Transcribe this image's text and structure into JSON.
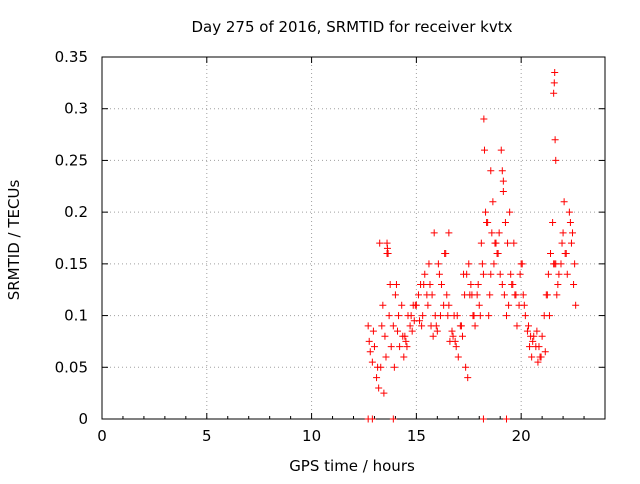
{
  "chart_data": {
    "type": "scatter",
    "title": "Day 275 of 2016, SRMTID for receiver kvtx",
    "xlabel": "GPS time / hours",
    "ylabel": "SRMTID / TECUs",
    "xlim": [
      0,
      24
    ],
    "ylim": [
      0,
      0.35
    ],
    "x_ticks": [
      0,
      5,
      10,
      15,
      20
    ],
    "y_ticks": [
      0,
      0.05,
      0.1,
      0.15,
      0.2,
      0.25,
      0.3,
      0.35
    ],
    "x_tick_labels": [
      "0",
      "5",
      "10",
      "15",
      "20"
    ],
    "y_tick_labels": [
      "0",
      "0.05",
      "0.1",
      "0.15",
      "0.2",
      "0.25",
      "0.3",
      "0.35"
    ],
    "grid": true,
    "marker": "+",
    "series": [
      {
        "name": "SRMTID",
        "color": "#ff0000",
        "x": [
          12.7,
          12.8,
          12.9,
          13.0,
          13.1,
          13.2,
          13.3,
          13.4,
          13.5,
          13.6,
          13.7,
          13.8,
          13.9,
          14.0,
          14.1,
          14.2,
          14.3,
          14.4,
          14.5,
          14.6,
          14.7,
          14.8,
          14.9,
          15.0,
          15.1,
          15.2,
          15.3,
          15.4,
          15.5,
          15.6,
          15.7,
          15.8,
          15.9,
          16.0,
          16.1,
          16.2,
          16.3,
          16.4,
          16.5,
          16.6,
          16.7,
          16.8,
          16.9,
          17.0,
          17.1,
          17.2,
          17.3,
          17.4,
          17.5,
          17.6,
          17.7,
          17.8,
          17.9,
          18.0,
          18.1,
          18.2,
          18.3,
          18.4,
          18.5,
          18.6,
          18.7,
          18.8,
          18.9,
          19.0,
          19.1,
          19.2,
          19.3,
          19.4,
          19.5,
          19.6,
          19.7,
          19.8,
          19.9,
          20.0,
          20.1,
          20.2,
          20.3,
          20.4,
          20.5,
          20.6,
          20.7,
          20.8,
          20.9,
          21.0,
          21.1,
          21.2,
          21.3,
          21.4,
          21.5,
          21.6,
          21.7,
          21.8,
          21.9,
          22.0,
          22.1,
          22.2,
          22.3,
          22.4,
          22.5,
          22.6,
          12.75,
          12.95,
          13.15,
          13.35,
          13.55,
          13.75,
          13.95,
          14.15,
          14.35,
          14.55,
          14.75,
          14.95,
          15.15,
          15.35,
          15.55,
          15.75,
          15.95,
          16.15,
          16.35,
          16.55,
          16.75,
          16.95,
          17.15,
          17.35,
          17.55,
          17.75,
          17.95,
          18.15,
          18.35,
          18.55,
          18.75,
          18.95,
          19.15,
          19.35,
          19.55,
          19.75,
          19.95,
          20.15,
          20.35,
          20.55,
          20.75,
          20.95,
          21.15,
          21.35,
          21.55,
          21.75,
          21.95,
          22.15,
          22.35,
          22.55,
          13.25,
          13.45,
          13.65,
          14.05,
          14.45,
          14.85,
          15.25,
          15.65,
          16.05,
          16.45,
          16.85,
          17.25,
          17.65,
          18.05,
          18.45,
          18.85,
          19.25,
          19.65,
          20.05,
          20.45,
          20.85,
          21.25,
          21.65,
          22.05,
          22.45,
          18.22,
          18.25,
          19.05,
          19.1,
          19.15,
          21.55,
          21.58,
          21.6,
          21.62,
          21.65,
          13.6,
          13.62,
          15.85,
          16.55,
          17.45,
          18.55,
          18.65,
          19.45,
          12.7,
          12.9,
          13.9,
          18.2,
          19.3
        ],
        "y": [
          0.09,
          0.065,
          0.055,
          0.07,
          0.04,
          0.03,
          0.05,
          0.11,
          0.08,
          0.16,
          0.1,
          0.07,
          0.09,
          0.12,
          0.085,
          0.07,
          0.11,
          0.06,
          0.075,
          0.1,
          0.09,
          0.085,
          0.095,
          0.11,
          0.12,
          0.13,
          0.1,
          0.14,
          0.12,
          0.15,
          0.09,
          0.08,
          0.1,
          0.085,
          0.14,
          0.13,
          0.11,
          0.16,
          0.1,
          0.075,
          0.085,
          0.1,
          0.07,
          0.06,
          0.09,
          0.08,
          0.12,
          0.14,
          0.15,
          0.13,
          0.1,
          0.09,
          0.12,
          0.11,
          0.17,
          0.14,
          0.2,
          0.19,
          0.12,
          0.18,
          0.15,
          0.17,
          0.16,
          0.14,
          0.13,
          0.12,
          0.1,
          0.11,
          0.14,
          0.13,
          0.12,
          0.09,
          0.11,
          0.15,
          0.12,
          0.1,
          0.085,
          0.07,
          0.06,
          0.08,
          0.07,
          0.055,
          0.06,
          0.08,
          0.1,
          0.12,
          0.14,
          0.16,
          0.19,
          0.15,
          0.12,
          0.14,
          0.15,
          0.18,
          0.16,
          0.14,
          0.2,
          0.17,
          0.13,
          0.11,
          0.075,
          0.085,
          0.05,
          0.09,
          0.06,
          0.13,
          0.05,
          0.1,
          0.08,
          0.07,
          0.1,
          0.11,
          0.095,
          0.13,
          0.11,
          0.12,
          0.09,
          0.1,
          0.16,
          0.11,
          0.08,
          0.1,
          0.09,
          0.05,
          0.12,
          0.1,
          0.13,
          0.15,
          0.19,
          0.14,
          0.17,
          0.18,
          0.22,
          0.17,
          0.13,
          0.12,
          0.14,
          0.11,
          0.09,
          0.075,
          0.085,
          0.06,
          0.065,
          0.1,
          0.15,
          0.13,
          0.17,
          0.16,
          0.19,
          0.15,
          0.17,
          0.025,
          0.16,
          0.13,
          0.08,
          0.11,
          0.09,
          0.13,
          0.15,
          0.12,
          0.075,
          0.14,
          0.12,
          0.1,
          0.1,
          0.16,
          0.19,
          0.17,
          0.15,
          0.08,
          0.07,
          0.12,
          0.15,
          0.21,
          0.18,
          0.29,
          0.26,
          0.26,
          0.24,
          0.23,
          0.315,
          0.325,
          0.335,
          0.27,
          0.25,
          0.17,
          0.165,
          0.18,
          0.18,
          0.04,
          0.24,
          0.21,
          0.2,
          0.0,
          0.0,
          0.0,
          0.0,
          0.0
        ]
      }
    ]
  }
}
